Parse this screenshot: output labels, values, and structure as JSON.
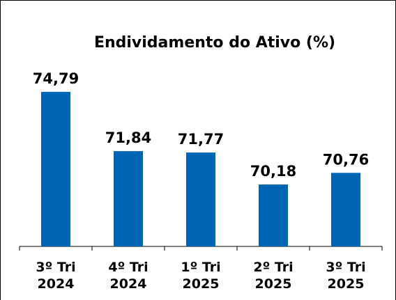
{
  "chart_data": {
    "type": "bar",
    "title": "Endividamento do Ativo (%)",
    "categories": [
      "3º Tri\n2024",
      "4º Tri\n2024",
      "1º Tri\n2025",
      "2º Tri\n2025",
      "3º Tri\n2025"
    ],
    "values": [
      74.79,
      71.84,
      71.77,
      70.18,
      70.76
    ],
    "value_labels": [
      "74,79",
      "71,84",
      "71,77",
      "70,18",
      "70,76"
    ],
    "color": "#0066b3",
    "ylim": [
      67.1,
      76
    ]
  }
}
